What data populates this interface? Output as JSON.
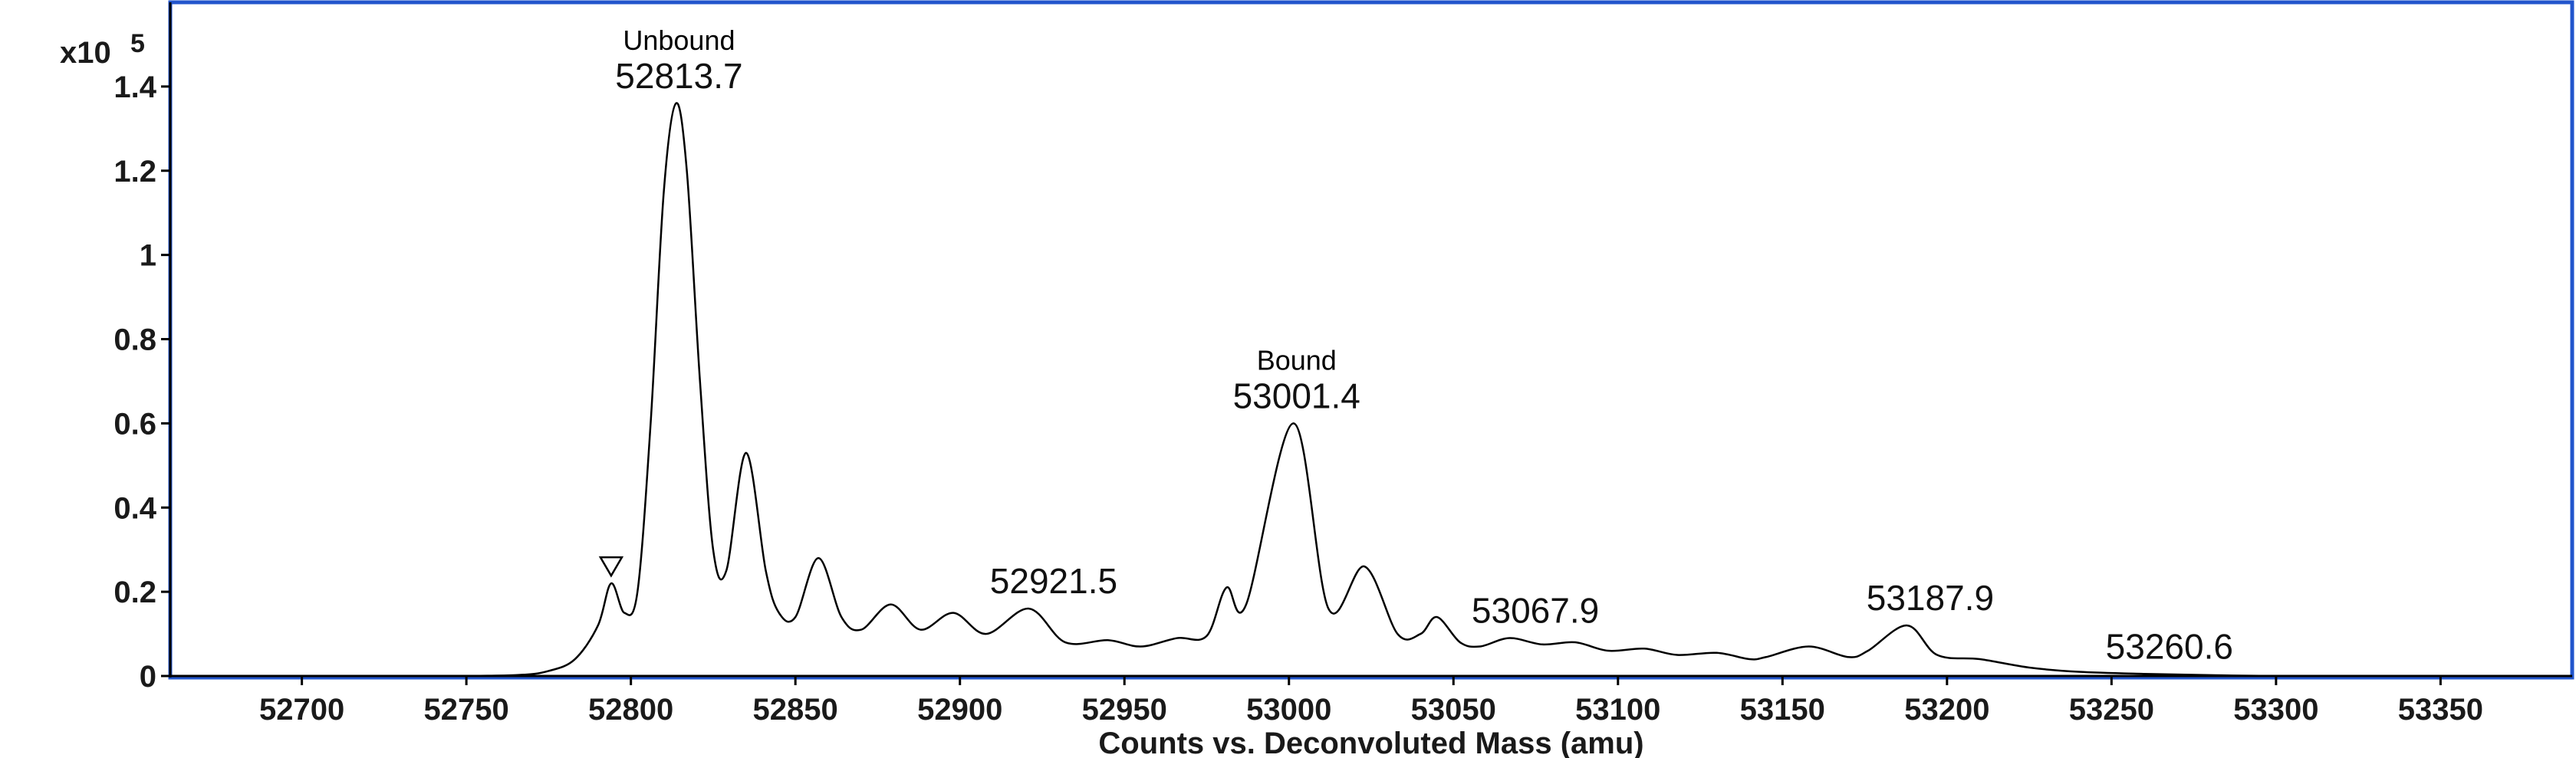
{
  "chart_data": {
    "type": "line",
    "title": "",
    "xlabel": "Counts vs. Deconvoluted Mass (amu)",
    "ylabel": "",
    "y_multiplier": {
      "base": "x10",
      "exponent": "5"
    },
    "xlim": [
      52660,
      53390
    ],
    "ylim": [
      0,
      1.6
    ],
    "x_ticks": [
      52700,
      52750,
      52800,
      52850,
      52900,
      52950,
      53000,
      53050,
      53100,
      53150,
      53200,
      53250,
      53300,
      53350
    ],
    "y_ticks": [
      0,
      0.2,
      0.4,
      0.6,
      0.8,
      1,
      1.2,
      1.4
    ],
    "y_tick_labels": [
      "0",
      "0.2",
      "0.4",
      "0.6",
      "0.8",
      "1",
      "1.2",
      "1.4"
    ],
    "grid": false,
    "legend": "none",
    "colors": {
      "frame": "#2255cc",
      "line": "#000000",
      "axis": "#000000"
    },
    "series": [
      {
        "x": [
          52660,
          52700,
          52740,
          52765,
          52775,
          52783,
          52790,
          52794,
          52798,
          52802,
          52806,
          52810,
          52813.7,
          52817,
          52821,
          52825,
          52829,
          52835,
          52841,
          52845,
          52850,
          52857,
          52864,
          52870,
          52879,
          52888,
          52898,
          52908,
          52921,
          52932,
          52945,
          52955,
          52966,
          52975,
          52981,
          52987,
          53001.4,
          53012,
          53023,
          53033,
          53040,
          53045,
          53052,
          53058,
          53067,
          53077,
          53087,
          53097,
          53108,
          53118,
          53130,
          53140,
          53145,
          53158,
          53170,
          53176,
          53187.9,
          53197,
          53210,
          53225,
          53240,
          53260,
          53280,
          53300,
          53330,
          53390
        ],
        "values": [
          0,
          0,
          0,
          0.002,
          0.012,
          0.04,
          0.12,
          0.22,
          0.15,
          0.2,
          0.6,
          1.15,
          1.36,
          1.2,
          0.7,
          0.3,
          0.25,
          0.53,
          0.25,
          0.15,
          0.14,
          0.28,
          0.14,
          0.11,
          0.17,
          0.11,
          0.15,
          0.1,
          0.16,
          0.08,
          0.085,
          0.07,
          0.09,
          0.095,
          0.21,
          0.17,
          0.6,
          0.16,
          0.26,
          0.1,
          0.1,
          0.14,
          0.08,
          0.07,
          0.09,
          0.075,
          0.08,
          0.06,
          0.065,
          0.05,
          0.055,
          0.04,
          0.045,
          0.07,
          0.045,
          0.06,
          0.12,
          0.05,
          0.04,
          0.02,
          0.01,
          0.005,
          0.002,
          0,
          0,
          0
        ]
      }
    ],
    "annotations": [
      {
        "x": 52813.7,
        "label": "52813.7",
        "title": "Unbound"
      },
      {
        "x": 53001.4,
        "label": "53001.4",
        "title": "Bound"
      },
      {
        "x": 52921.5,
        "label": "52921.5",
        "title": ""
      },
      {
        "x": 53067.9,
        "label": "53067.9",
        "title": ""
      },
      {
        "x": 53187.9,
        "label": "53187.9",
        "title": ""
      },
      {
        "x": 53260.6,
        "label": "53260.6",
        "title": ""
      }
    ],
    "markers": [
      {
        "type": "triangle-down",
        "x": 52794,
        "y": 0.22
      }
    ]
  }
}
